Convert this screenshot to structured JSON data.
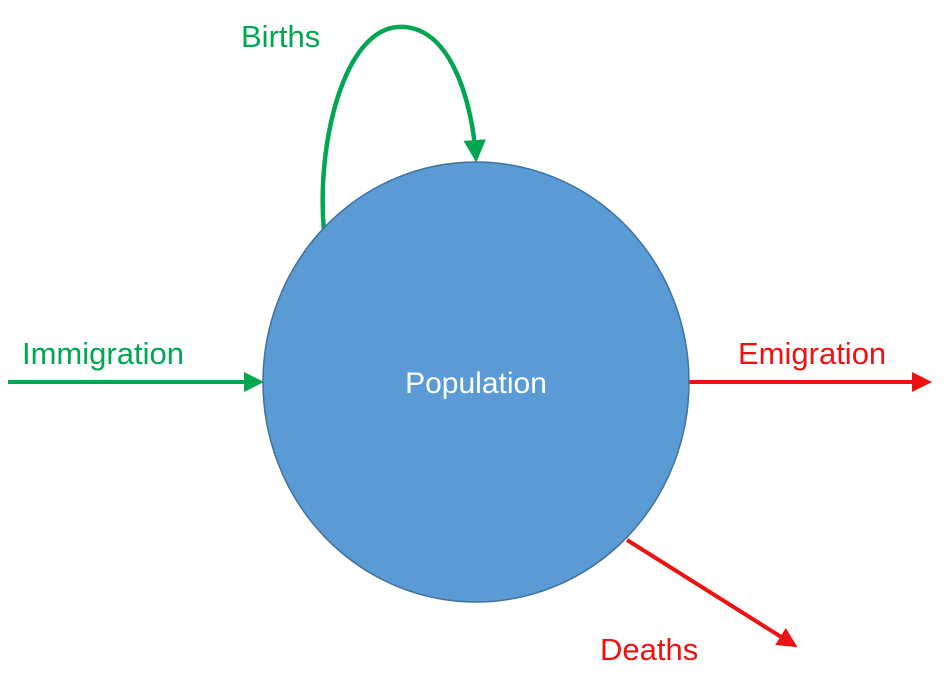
{
  "diagram": {
    "center": {
      "label": "Population"
    },
    "flows": {
      "births": {
        "label": "Births"
      },
      "immigration": {
        "label": "Immigration"
      },
      "emigration": {
        "label": "Emigration"
      },
      "deaths": {
        "label": "Deaths"
      }
    }
  },
  "colors": {
    "inflow": "#00a651",
    "outflow": "#ee1111",
    "node_fill": "#5b9bd5",
    "node_stroke": "#41719c",
    "node_text": "#ffffff"
  }
}
